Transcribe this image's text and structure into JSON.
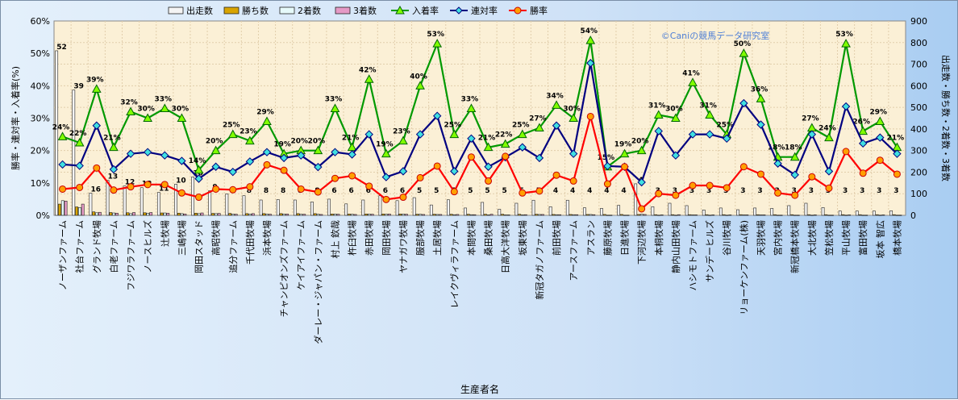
{
  "chart_data": {
    "type": "bar",
    "xlabel": "生産者名",
    "ylabel_left": "勝率・連対率・入着率(%)",
    "ylabel_right": "出走数・勝ち数・2着数・3着数",
    "ylim_left": [
      0,
      60
    ],
    "ylim_right": [
      0,
      900
    ],
    "left_ticks": [
      "0%",
      "10%",
      "20%",
      "30%",
      "40%",
      "50%",
      "60%"
    ],
    "right_ticks": [
      "0",
      "100",
      "200",
      "300",
      "400",
      "500",
      "600",
      "700",
      "800",
      "900"
    ],
    "watermark": "©Caniの競馬データ研究室",
    "legend_position": "top",
    "categories": [
      "ノーザンファーム",
      "社台ファーム",
      "グランド牧場",
      "白老ファーム",
      "フジワラファーム",
      "ノースヒルズ",
      "辻牧場",
      "三嶋牧場",
      "岡田スタッド",
      "高昭牧場",
      "追分ファーム",
      "千代田牧場",
      "浜本牧場",
      "チャンピオンズファーム",
      "ケイアイファーム",
      "ダーレー・ジャパン・ファーム",
      "村上 欽哉",
      "杵臼牧場",
      "赤田牧場",
      "岡田牧場",
      "ヤナガワ牧場",
      "服部牧場",
      "土居牧場",
      "レイクヴィラファーム",
      "本間牧場",
      "桑田牧場",
      "日高大洋牧場",
      "坂東牧場",
      "新冠タガノファーム",
      "前田牧場",
      "アースファーム",
      "アスラン",
      "藤原牧場",
      "日進牧場",
      "下河辺牧場",
      "本桐牧場",
      "静内山田牧場",
      "ハシモトファーム",
      "サンデーヒルズ",
      "谷川牧場",
      "リョーケンファーム(株)",
      "天羽牧場",
      "宮内牧場",
      "新冠橋本牧場",
      "大北牧場",
      "笠松牧場",
      "平山牧場",
      "富田牧場",
      "坂本 智広",
      "橋本牧場"
    ],
    "bar_labels": [
      "52",
      "39",
      "16",
      "13",
      "12",
      "12",
      "11",
      "10",
      "10",
      "9",
      "9",
      "8",
      "8",
      "8",
      "8",
      "8",
      "6",
      "6",
      "6",
      "6",
      "6",
      "5",
      "5",
      "5",
      "5",
      "5",
      "5",
      "5",
      "5",
      "4",
      "4",
      "4",
      "4",
      "4",
      "4",
      "3",
      "3",
      "3",
      "3",
      "3",
      "3",
      "3",
      "3",
      "3",
      "3",
      "3",
      "3",
      "3",
      "3",
      "3"
    ],
    "series": [
      {
        "name": "出走数",
        "kind": "bar",
        "axis": "right",
        "color": "#f4f4f4",
        "values": [
          762,
          580,
          103,
          162,
          136,
          128,
          106,
          144,
          178,
          114,
          99,
          91,
          71,
          73,
          71,
          62,
          75,
          53,
          71,
          91,
          68,
          82,
          48,
          72,
          34,
          60,
          28,
          56,
          70,
          40,
          70,
          35,
          32,
          46,
          146,
          40,
          56,
          45,
          25,
          34,
          26,
          34,
          32,
          45,
          56,
          36,
          20,
          20,
          20,
          21
        ]
      },
      {
        "name": "勝ち数",
        "kind": "bar",
        "axis": "right",
        "color": "#d9a400",
        "values": [
          52,
          39,
          16,
          13,
          12,
          12,
          11,
          10,
          10,
          9,
          9,
          8,
          8,
          8,
          8,
          8,
          6,
          6,
          6,
          6,
          6,
          5,
          5,
          5,
          5,
          5,
          5,
          5,
          5,
          4,
          4,
          4,
          4,
          4,
          4,
          3,
          3,
          3,
          3,
          3,
          3,
          3,
          3,
          3,
          3,
          3,
          3,
          3,
          3,
          3
        ]
      },
      {
        "name": "2着数",
        "kind": "bar",
        "axis": "right",
        "color": "#e6fafa",
        "values": [
          68,
          36,
          12,
          11,
          8,
          10,
          11,
          8,
          8,
          8,
          6,
          6,
          6,
          6,
          5,
          5,
          6,
          5,
          6,
          5,
          6,
          5,
          4,
          3,
          3,
          2,
          2,
          2,
          4,
          3,
          3,
          4,
          1,
          1,
          5,
          1,
          1,
          2,
          1,
          1,
          2,
          2,
          1,
          1,
          1,
          1,
          1,
          1,
          1,
          1
        ]
      },
      {
        "name": "3着数",
        "kind": "bar",
        "axis": "right",
        "color": "#e59ac6",
        "values": [
          66,
          52,
          14,
          10,
          13,
          13,
          10,
          6,
          11,
          9,
          5,
          8,
          5,
          6,
          5,
          4,
          5,
          4,
          5,
          6,
          5,
          4,
          4,
          4,
          3,
          5,
          2,
          3,
          4,
          3,
          3,
          3,
          1,
          1,
          4,
          2,
          3,
          2,
          2,
          2,
          2,
          2,
          1,
          1,
          2,
          1,
          2,
          1,
          2,
          1
        ]
      },
      {
        "name": "入着率",
        "kind": "line",
        "axis": "left",
        "color": "#009900",
        "marker": "triangle",
        "values": [
          24.3,
          22.4,
          39.0,
          21.0,
          32.0,
          30.0,
          33.0,
          30.0,
          14.0,
          20.0,
          25.0,
          23.0,
          29.0,
          19.0,
          20.0,
          20.0,
          33.0,
          21.0,
          42.0,
          19.0,
          23.0,
          40.0,
          53.0,
          25.0,
          33.0,
          21.0,
          22.0,
          25.0,
          27.0,
          34.0,
          30.0,
          54.0,
          15.0,
          19.0,
          20.0,
          31.0,
          30.0,
          41.0,
          31.0,
          25.0,
          50.0,
          36.0,
          18.0,
          18.0,
          27.0,
          24.0,
          53.0,
          26.0,
          29.0,
          21.0
        ],
        "labels": [
          "24%",
          "22%",
          "39%",
          "21%",
          "32%",
          "30%",
          "33%",
          "30%",
          "14%",
          "20%",
          "25%",
          "23%",
          "29%",
          "19%",
          "20%",
          "20%",
          "33%",
          "21%",
          "42%",
          "19%",
          "23%",
          "40%",
          "53%",
          "25%",
          "33%",
          "21%",
          "22%",
          "25%",
          "27%",
          "34%",
          "30%",
          "54%",
          "15%",
          "19%",
          "20%",
          "31%",
          "30%",
          "41%",
          "31%",
          "25%",
          "50%",
          "36%",
          "18%",
          "18%",
          "27%",
          "24%",
          "53%",
          "26%",
          "29%",
          "21%"
        ]
      },
      {
        "name": "連対率",
        "kind": "line",
        "axis": "left",
        "color": "#000080",
        "marker": "diamond",
        "values": [
          15.7,
          15.3,
          27.7,
          14.2,
          19.0,
          19.5,
          18.5,
          16.8,
          11.3,
          15.0,
          13.4,
          16.6,
          19.5,
          17.7,
          18.5,
          14.9,
          19.5,
          18.8,
          25.0,
          11.8,
          13.6,
          25.0,
          30.7,
          13.6,
          23.7,
          15.0,
          17.9,
          21.0,
          17.7,
          27.7,
          19.0,
          47.0,
          15.2,
          15.0,
          10.2,
          26.0,
          18.5,
          25.0,
          25.0,
          23.7,
          34.6,
          28.0,
          16.0,
          12.5,
          25.0,
          13.6,
          33.6,
          22.2,
          24.0,
          19.0
        ]
      },
      {
        "name": "勝率",
        "kind": "line",
        "axis": "left",
        "color": "#ff0000",
        "marker": "circle",
        "values": [
          8.1,
          8.6,
          14.6,
          7.8,
          8.8,
          9.5,
          9.5,
          6.9,
          5.6,
          8.1,
          7.9,
          8.8,
          15.6,
          13.9,
          8.1,
          7.2,
          11.4,
          12.2,
          9.0,
          4.9,
          5.6,
          11.6,
          15.2,
          7.3,
          18.0,
          10.6,
          18.2,
          6.9,
          7.5,
          12.4,
          10.6,
          30.5,
          9.7,
          15.0,
          2.0,
          6.7,
          6.2,
          9.2,
          9.2,
          8.5,
          15.0,
          12.7,
          6.9,
          6.2,
          11.9,
          8.4,
          19.7,
          13.0,
          17.0,
          12.7
        ]
      }
    ]
  }
}
